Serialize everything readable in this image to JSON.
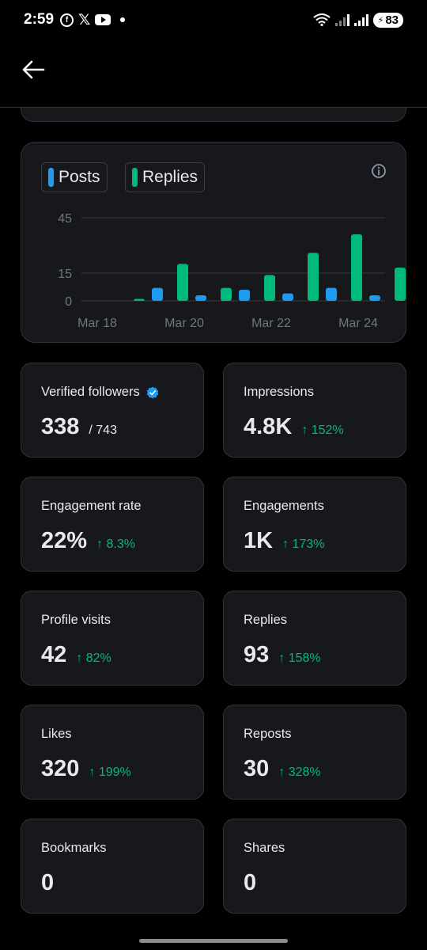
{
  "status_bar": {
    "time": "2:59",
    "battery": "83"
  },
  "chart_data": {
    "type": "bar",
    "categories": [
      "Mar 18",
      "Mar 19",
      "Mar 20",
      "Mar 21",
      "Mar 22",
      "Mar 23",
      "Mar 24"
    ],
    "series": [
      {
        "name": "Posts",
        "color": "#1d9bf0",
        "values": [
          0,
          7,
          3,
          6,
          4,
          7,
          3
        ]
      },
      {
        "name": "Replies",
        "color": "#00ba7c",
        "values": [
          1,
          20,
          7,
          14,
          26,
          36,
          18
        ]
      }
    ],
    "yticks": [
      "45",
      "15",
      "0"
    ],
    "ytick_values": [
      45,
      15,
      0
    ],
    "xtick_labels": [
      "Mar 18",
      "Mar 20",
      "Mar 22",
      "Mar 24"
    ],
    "ylim": [
      0,
      45
    ],
    "grid": true,
    "legend": "top-left"
  },
  "legend": {
    "posts": "Posts",
    "replies": "Replies"
  },
  "stats": {
    "verified_followers": {
      "label": "Verified followers",
      "value": "338",
      "sub": "/ 743"
    },
    "impressions": {
      "label": "Impressions",
      "value": "4.8K",
      "change": "↑ 152%"
    },
    "engagement_rate": {
      "label": "Engagement rate",
      "value": "22%",
      "change": "↑ 8.3%"
    },
    "engagements": {
      "label": "Engagements",
      "value": "1K",
      "change": "↑ 173%"
    },
    "profile_visits": {
      "label": "Profile visits",
      "value": "42",
      "change": "↑ 82%"
    },
    "replies": {
      "label": "Replies",
      "value": "93",
      "change": "↑ 158%"
    },
    "likes": {
      "label": "Likes",
      "value": "320",
      "change": "↑ 199%"
    },
    "reposts": {
      "label": "Reposts",
      "value": "30",
      "change": "↑ 328%"
    },
    "bookmarks": {
      "label": "Bookmarks",
      "value": "0"
    },
    "shares": {
      "label": "Shares",
      "value": "0"
    }
  },
  "icons": {
    "back": "arrow-left-icon",
    "info": "info-icon",
    "verified": "verified-badge-icon"
  }
}
